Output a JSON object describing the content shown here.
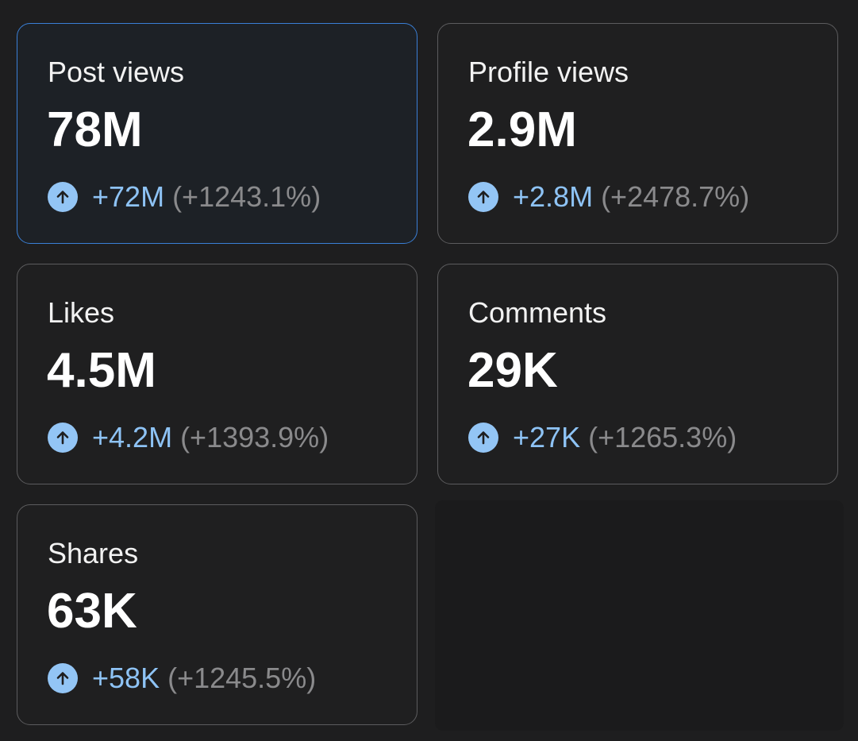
{
  "colors": {
    "background": "#1e1e1f",
    "card_border": "#5c5c5e",
    "selected_border": "#3a7fd6",
    "accent_blue": "#8ec3f5",
    "muted_gray": "#8a8a8c"
  },
  "metrics": [
    {
      "label": "Post views",
      "value": "78M",
      "delta": "+72M",
      "percent": "(+1243.1%)",
      "icon": "arrow-up-icon",
      "selected": true
    },
    {
      "label": "Profile views",
      "value": "2.9M",
      "delta": "+2.8M",
      "percent": "(+2478.7%)",
      "icon": "arrow-up-icon",
      "selected": false
    },
    {
      "label": "Likes",
      "value": "4.5M",
      "delta": "+4.2M",
      "percent": "(+1393.9%)",
      "icon": "arrow-up-icon",
      "selected": false
    },
    {
      "label": "Comments",
      "value": "29K",
      "delta": "+27K",
      "percent": "(+1265.3%)",
      "icon": "arrow-up-icon",
      "selected": false
    },
    {
      "label": "Shares",
      "value": "63K",
      "delta": "+58K",
      "percent": "(+1245.5%)",
      "icon": "arrow-up-icon",
      "selected": false
    }
  ]
}
